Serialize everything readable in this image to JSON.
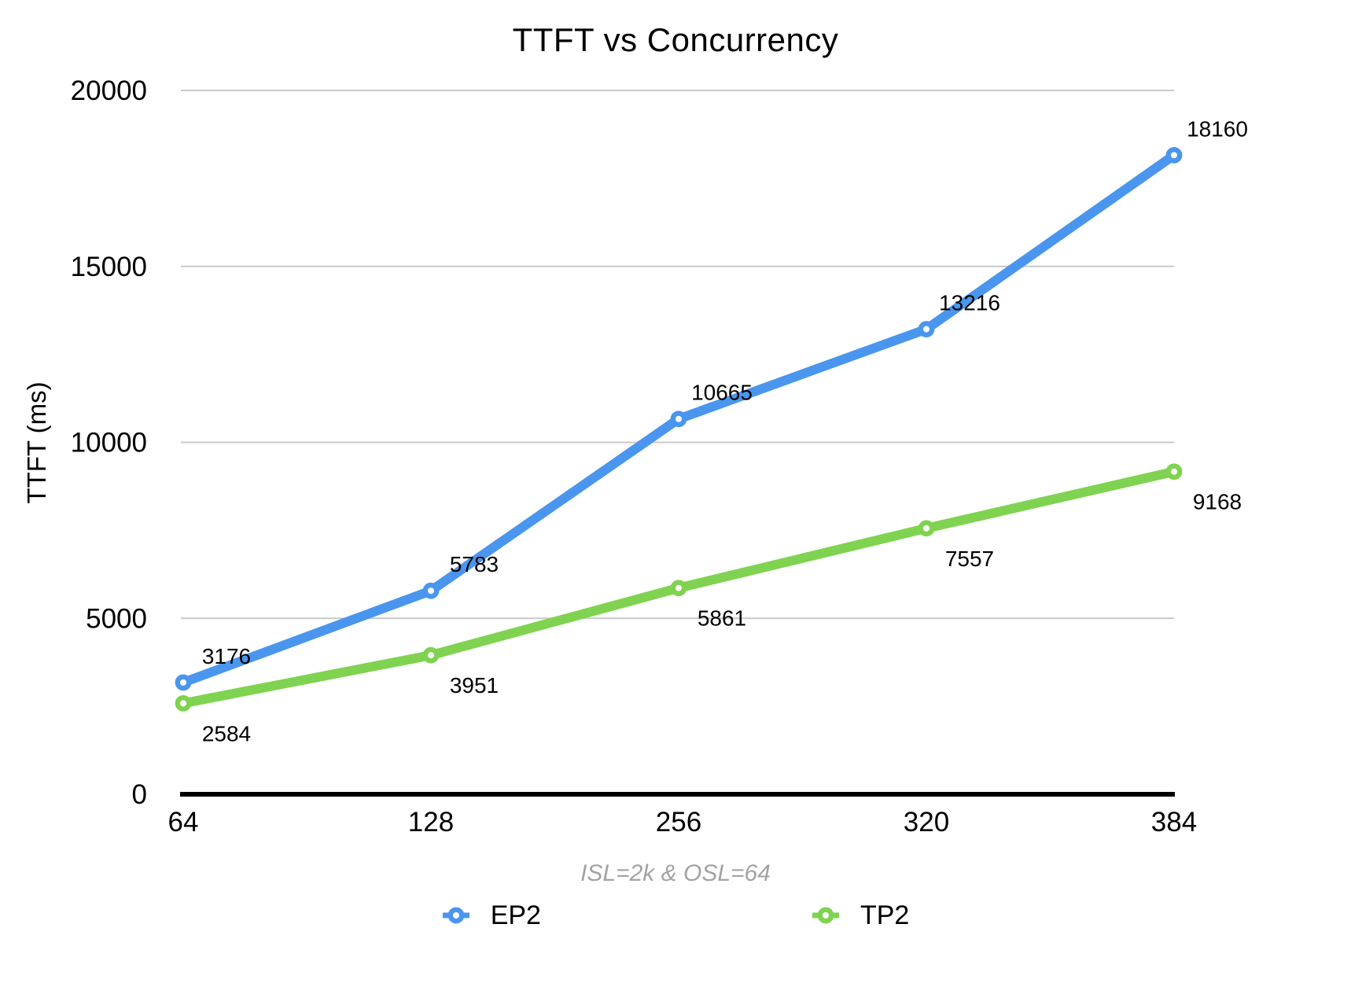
{
  "chart_data": {
    "type": "line",
    "title": "TTFT vs Concurrency",
    "ylabel": "TTFT (ms)",
    "xlabel": "",
    "caption": "ISL=2k & OSL=64",
    "categories": [
      "64",
      "128",
      "256",
      "320",
      "384"
    ],
    "series": [
      {
        "name": "EP2",
        "color": "#4a96ee",
        "values": [
          3176,
          5783,
          10665,
          13216,
          18160
        ],
        "value_label_position": "above"
      },
      {
        "name": "TP2",
        "color": "#7fd350",
        "values": [
          2584,
          3951,
          5861,
          7557,
          9168
        ],
        "value_label_position": "below"
      }
    ],
    "ylim": [
      0,
      20000
    ],
    "y_ticks": [
      0,
      5000,
      10000,
      15000,
      20000
    ],
    "grid": true,
    "legend_position": "bottom",
    "colors": {
      "grid": "#c9c9c9",
      "axis": "#000000",
      "text": "#000000",
      "caption": "#a3a3a3",
      "marker_fill": "#ffffff"
    }
  }
}
